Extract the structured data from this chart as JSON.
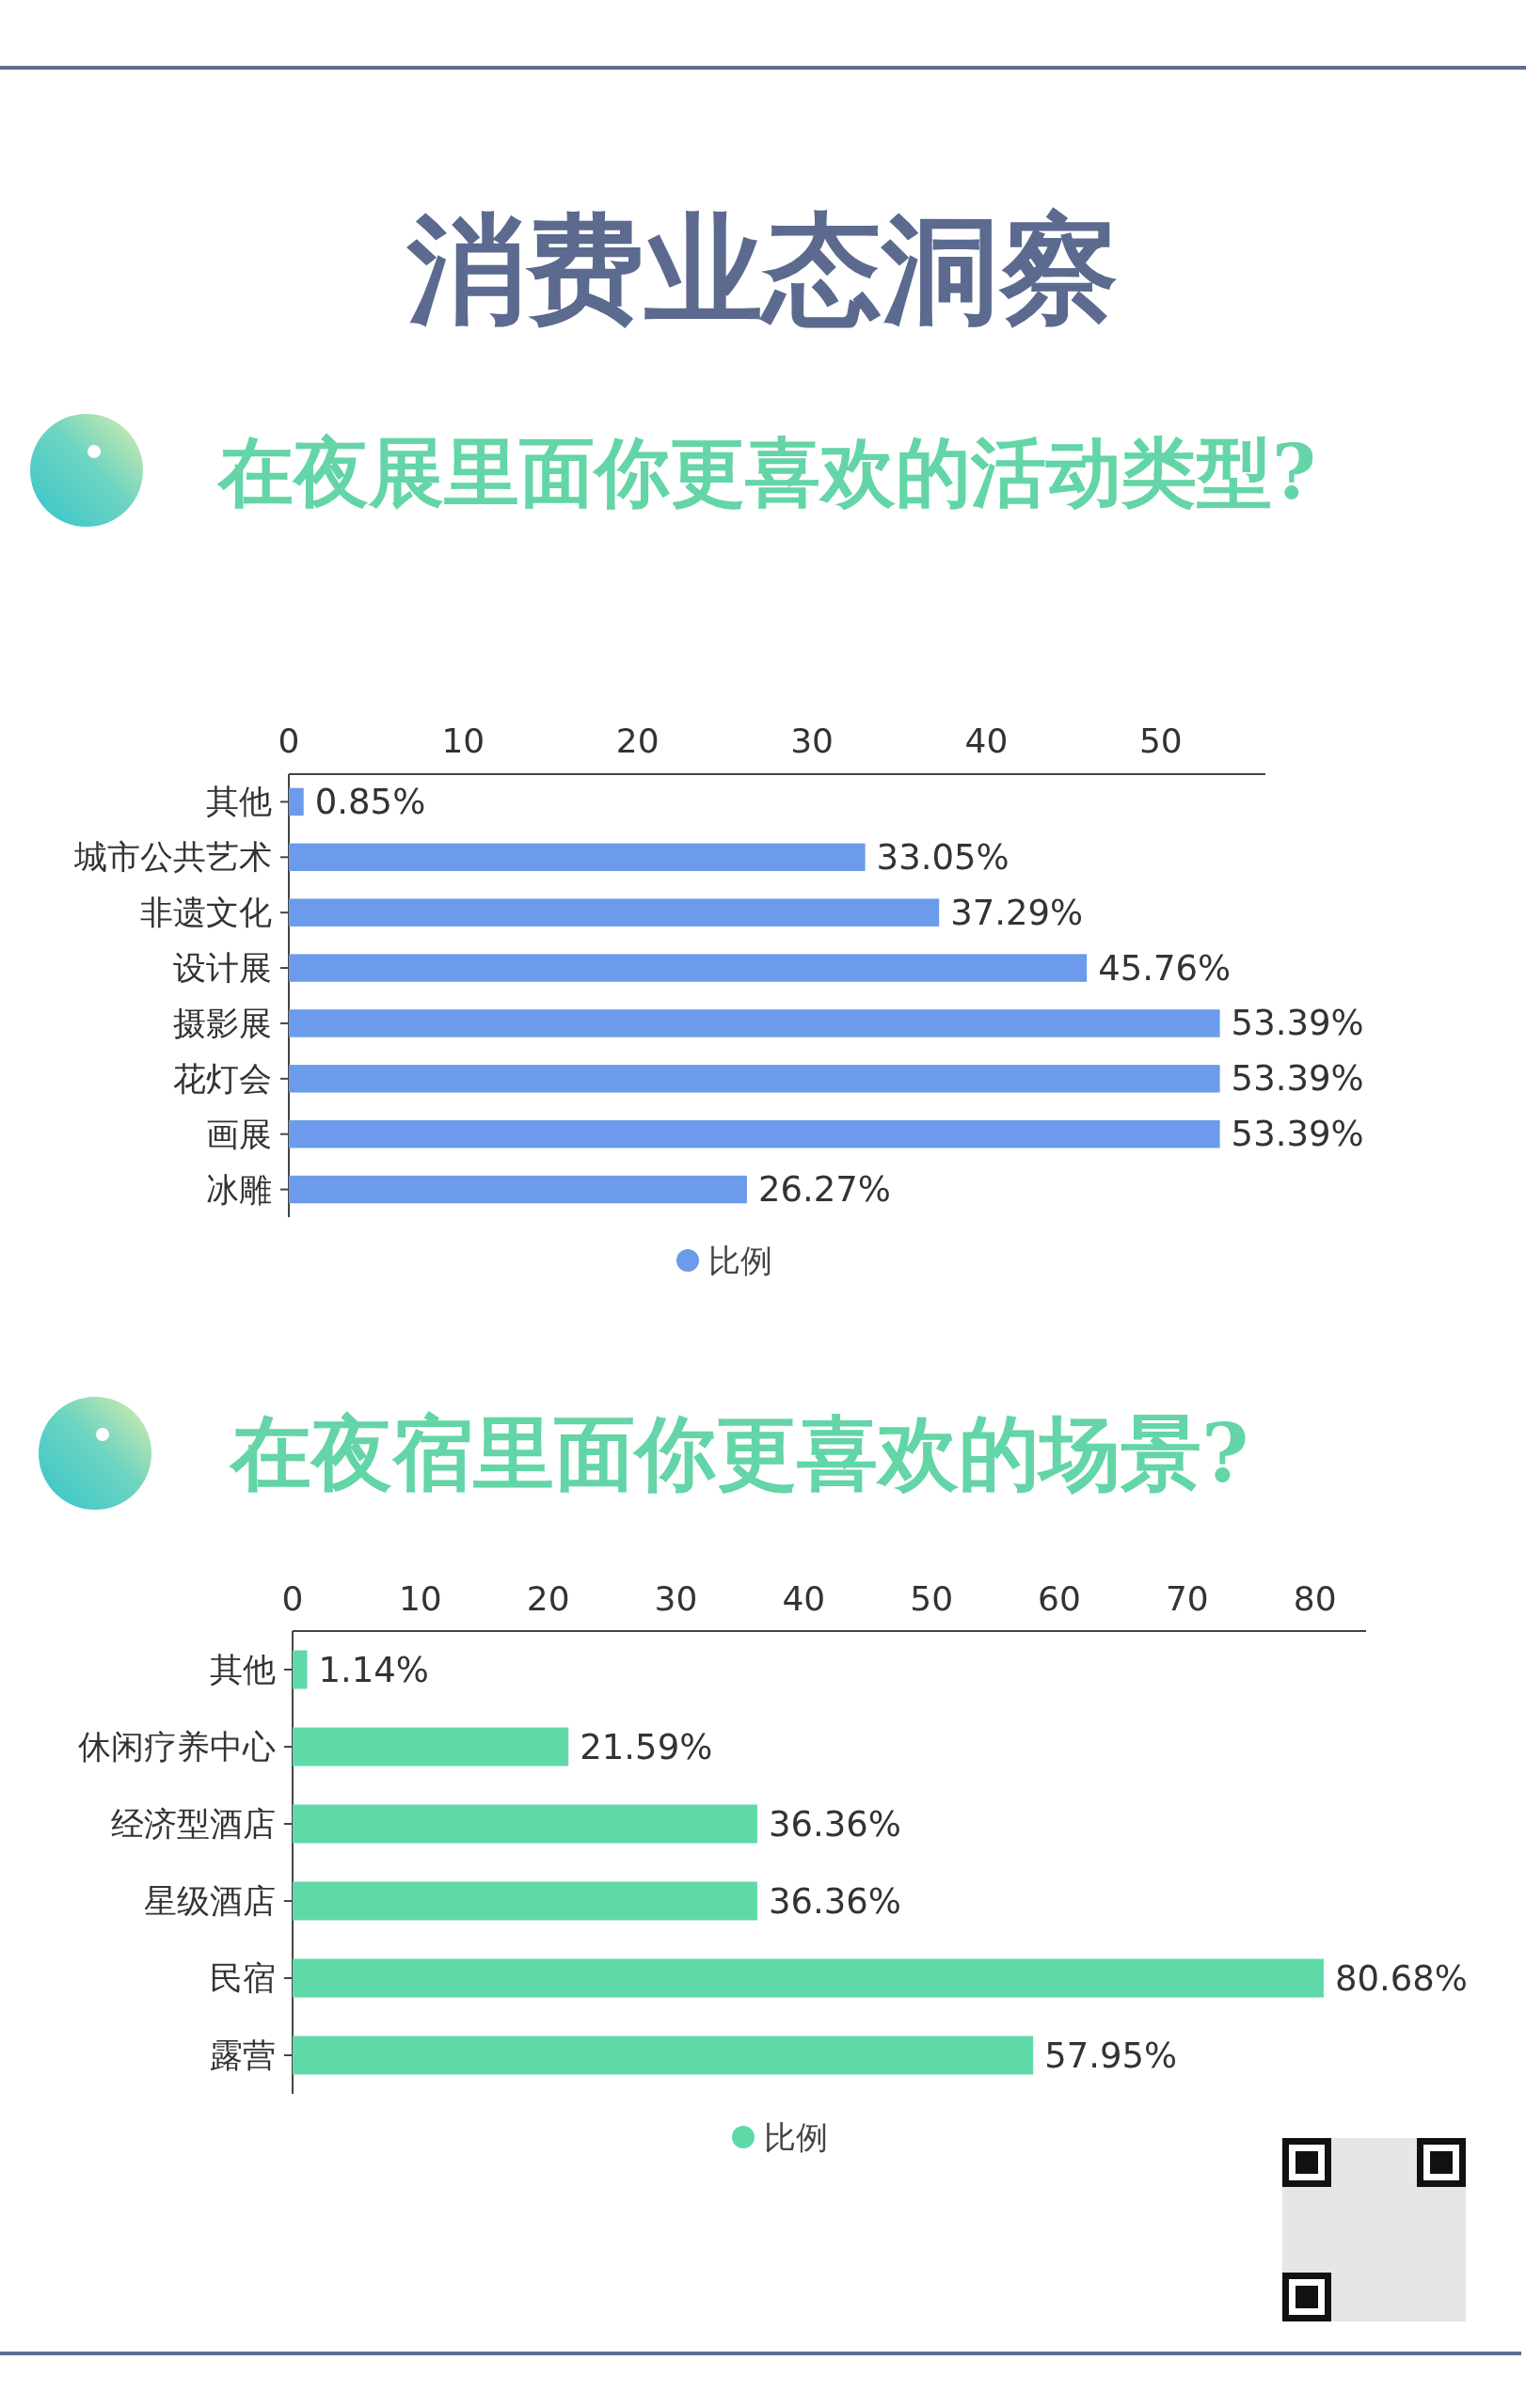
{
  "chart_data": [
    {
      "type": "bar",
      "title": "消费业态洞察",
      "subtitle": "在夜展里面你更喜欢的活动类型?",
      "orientation": "horizontal",
      "categories": [
        "其他",
        "城市公共艺术",
        "非遗文化",
        "设计展",
        "摄影展",
        "花灯会",
        "画展",
        "冰雕"
      ],
      "series": [
        {
          "name": "比例",
          "color": "#6b9bea",
          "values": [
            0.85,
            33.05,
            37.29,
            45.76,
            53.39,
            53.39,
            53.39,
            26.27
          ],
          "value_labels": [
            "0.85%",
            "33.05%",
            "37.29%",
            "45.76%",
            "53.39%",
            "53.39%",
            "53.39%",
            "26.27%"
          ]
        }
      ],
      "xlim": [
        0,
        56
      ],
      "xticks": [
        0,
        10,
        20,
        30,
        40,
        50
      ],
      "legend": "bottom"
    },
    {
      "type": "bar",
      "title": "在夜宿里面你更喜欢的场景?",
      "orientation": "horizontal",
      "categories": [
        "其他",
        "休闲疗养中心",
        "经济型酒店",
        "星级酒店",
        "民宿",
        "露营"
      ],
      "series": [
        {
          "name": "比例",
          "color": "#60d9a9",
          "values": [
            1.14,
            21.59,
            36.36,
            36.36,
            80.68,
            57.95
          ],
          "value_labels": [
            "1.14%",
            "21.59%",
            "36.36%",
            "36.36%",
            "80.68%",
            "57.95%"
          ]
        }
      ],
      "xlim": [
        0,
        84
      ],
      "xticks": [
        0,
        10,
        20,
        30,
        40,
        50,
        60,
        70,
        80
      ],
      "legend": "bottom"
    }
  ]
}
